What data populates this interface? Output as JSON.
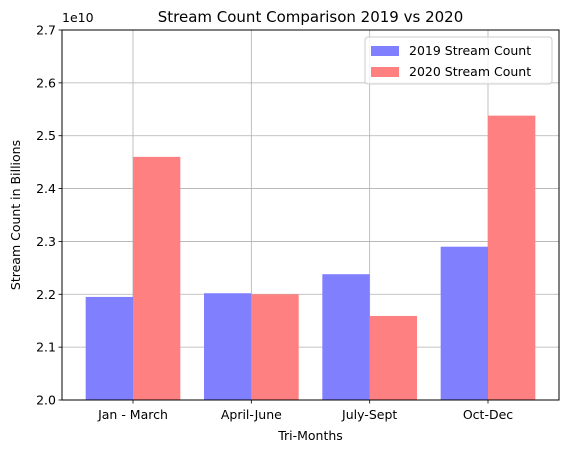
{
  "chart_data": {
    "type": "bar",
    "title": "Stream Count Comparison 2019 vs 2020",
    "xlabel": "Tri-Months",
    "ylabel": "Stream Count in Billions",
    "y_offset_label": "1e10",
    "y_scale": 10000000000,
    "categories": [
      "Jan - March",
      "April-June",
      "July-Sept",
      "Oct-Dec"
    ],
    "series": [
      {
        "name": "2019 Stream Count",
        "color": "#8080ff",
        "values": [
          21950000000,
          22020000000,
          22380000000,
          22900000000
        ]
      },
      {
        "name": "2020 Stream Count",
        "color": "#ff8080",
        "values": [
          24600000000,
          22000000000,
          21590000000,
          25380000000
        ]
      }
    ],
    "ylim": [
      20000000000,
      27000000000
    ],
    "yticks": [
      2.0,
      2.1,
      2.2,
      2.3,
      2.4,
      2.5,
      2.6,
      2.7
    ],
    "ytick_labels": [
      "2.0",
      "2.1",
      "2.2",
      "2.3",
      "2.4",
      "2.5",
      "2.6",
      "2.7"
    ],
    "grid": true,
    "legend_position": "top-right"
  }
}
